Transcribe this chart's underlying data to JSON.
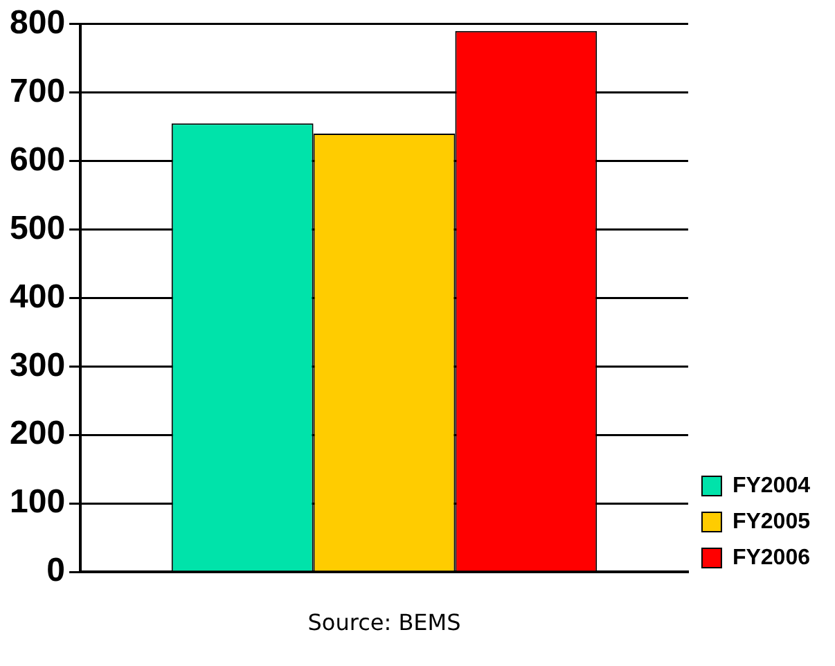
{
  "chart_data": {
    "type": "bar",
    "categories": [
      null
    ],
    "series": [
      {
        "name": "FY2004",
        "color": "#00e3aa",
        "values": [
          655
        ]
      },
      {
        "name": "FY2005",
        "color": "#ffcc00",
        "values": [
          640
        ]
      },
      {
        "name": "FY2006",
        "color": "#ff0000",
        "values": [
          790
        ]
      }
    ],
    "ylim": [
      0,
      800
    ],
    "yticks": [
      0,
      100,
      200,
      300,
      400,
      500,
      600,
      700,
      800
    ],
    "grid": "y",
    "legend": "bottom right",
    "annotations": [
      "Source: BEMS"
    ]
  }
}
